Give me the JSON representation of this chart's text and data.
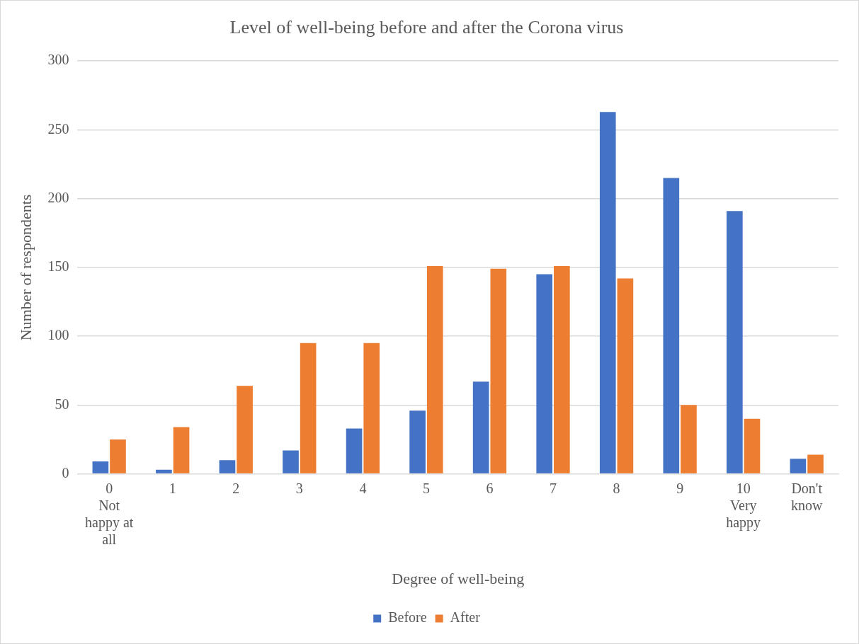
{
  "chart_data": {
    "type": "bar",
    "title": "Level of well-being before and after the Corona virus",
    "xlabel": "Degree of well-being",
    "ylabel": "Number of respondents",
    "categories": [
      "0\nNot\nhappy at\nall",
      "1",
      "2",
      "3",
      "4",
      "5",
      "6",
      "7",
      "8",
      "9",
      "10\nVery\nhappy",
      "Don't\nknow"
    ],
    "series": [
      {
        "name": "Before",
        "color": "#4472c4",
        "values": [
          9,
          3,
          10,
          17,
          33,
          46,
          67,
          145,
          263,
          215,
          191,
          11
        ]
      },
      {
        "name": "After",
        "color": "#ed7d31",
        "values": [
          25,
          34,
          64,
          95,
          95,
          151,
          149,
          151,
          142,
          50,
          40,
          14
        ]
      }
    ],
    "ylim": [
      0,
      300
    ],
    "yticks": [
      0,
      50,
      100,
      150,
      200,
      250,
      300
    ],
    "grid": "y",
    "legend": "bottom"
  }
}
